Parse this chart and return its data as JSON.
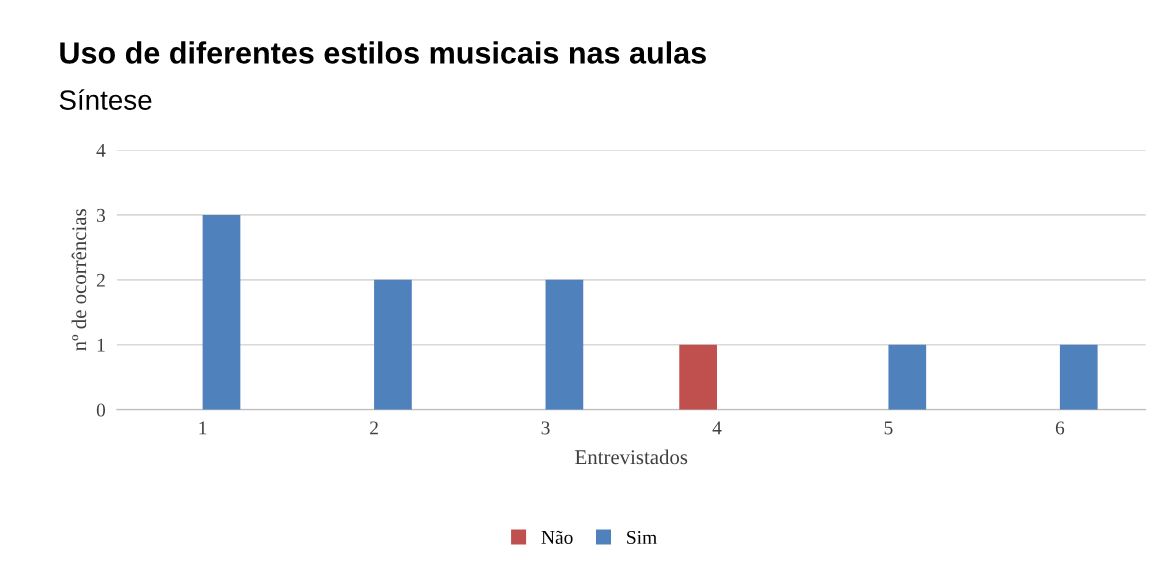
{
  "chart_data": {
    "type": "bar",
    "title": "Uso de diferentes estilos musicais nas aulas",
    "subtitle": "Síntese",
    "xlabel": "Entrevistados",
    "ylabel": "nº de ocorrências",
    "categories": [
      "1",
      "2",
      "3",
      "4",
      "5",
      "6"
    ],
    "series": [
      {
        "name": "Não",
        "color": "#c0504d",
        "values": [
          null,
          null,
          null,
          1,
          null,
          null
        ]
      },
      {
        "name": "Sim",
        "color": "#4f81bd",
        "values": [
          3,
          2,
          2,
          null,
          1,
          1
        ]
      }
    ],
    "ylim": [
      0,
      4
    ],
    "yticks": [
      0,
      1,
      2,
      3,
      4
    ],
    "grid": "y",
    "legend": "bottom"
  }
}
